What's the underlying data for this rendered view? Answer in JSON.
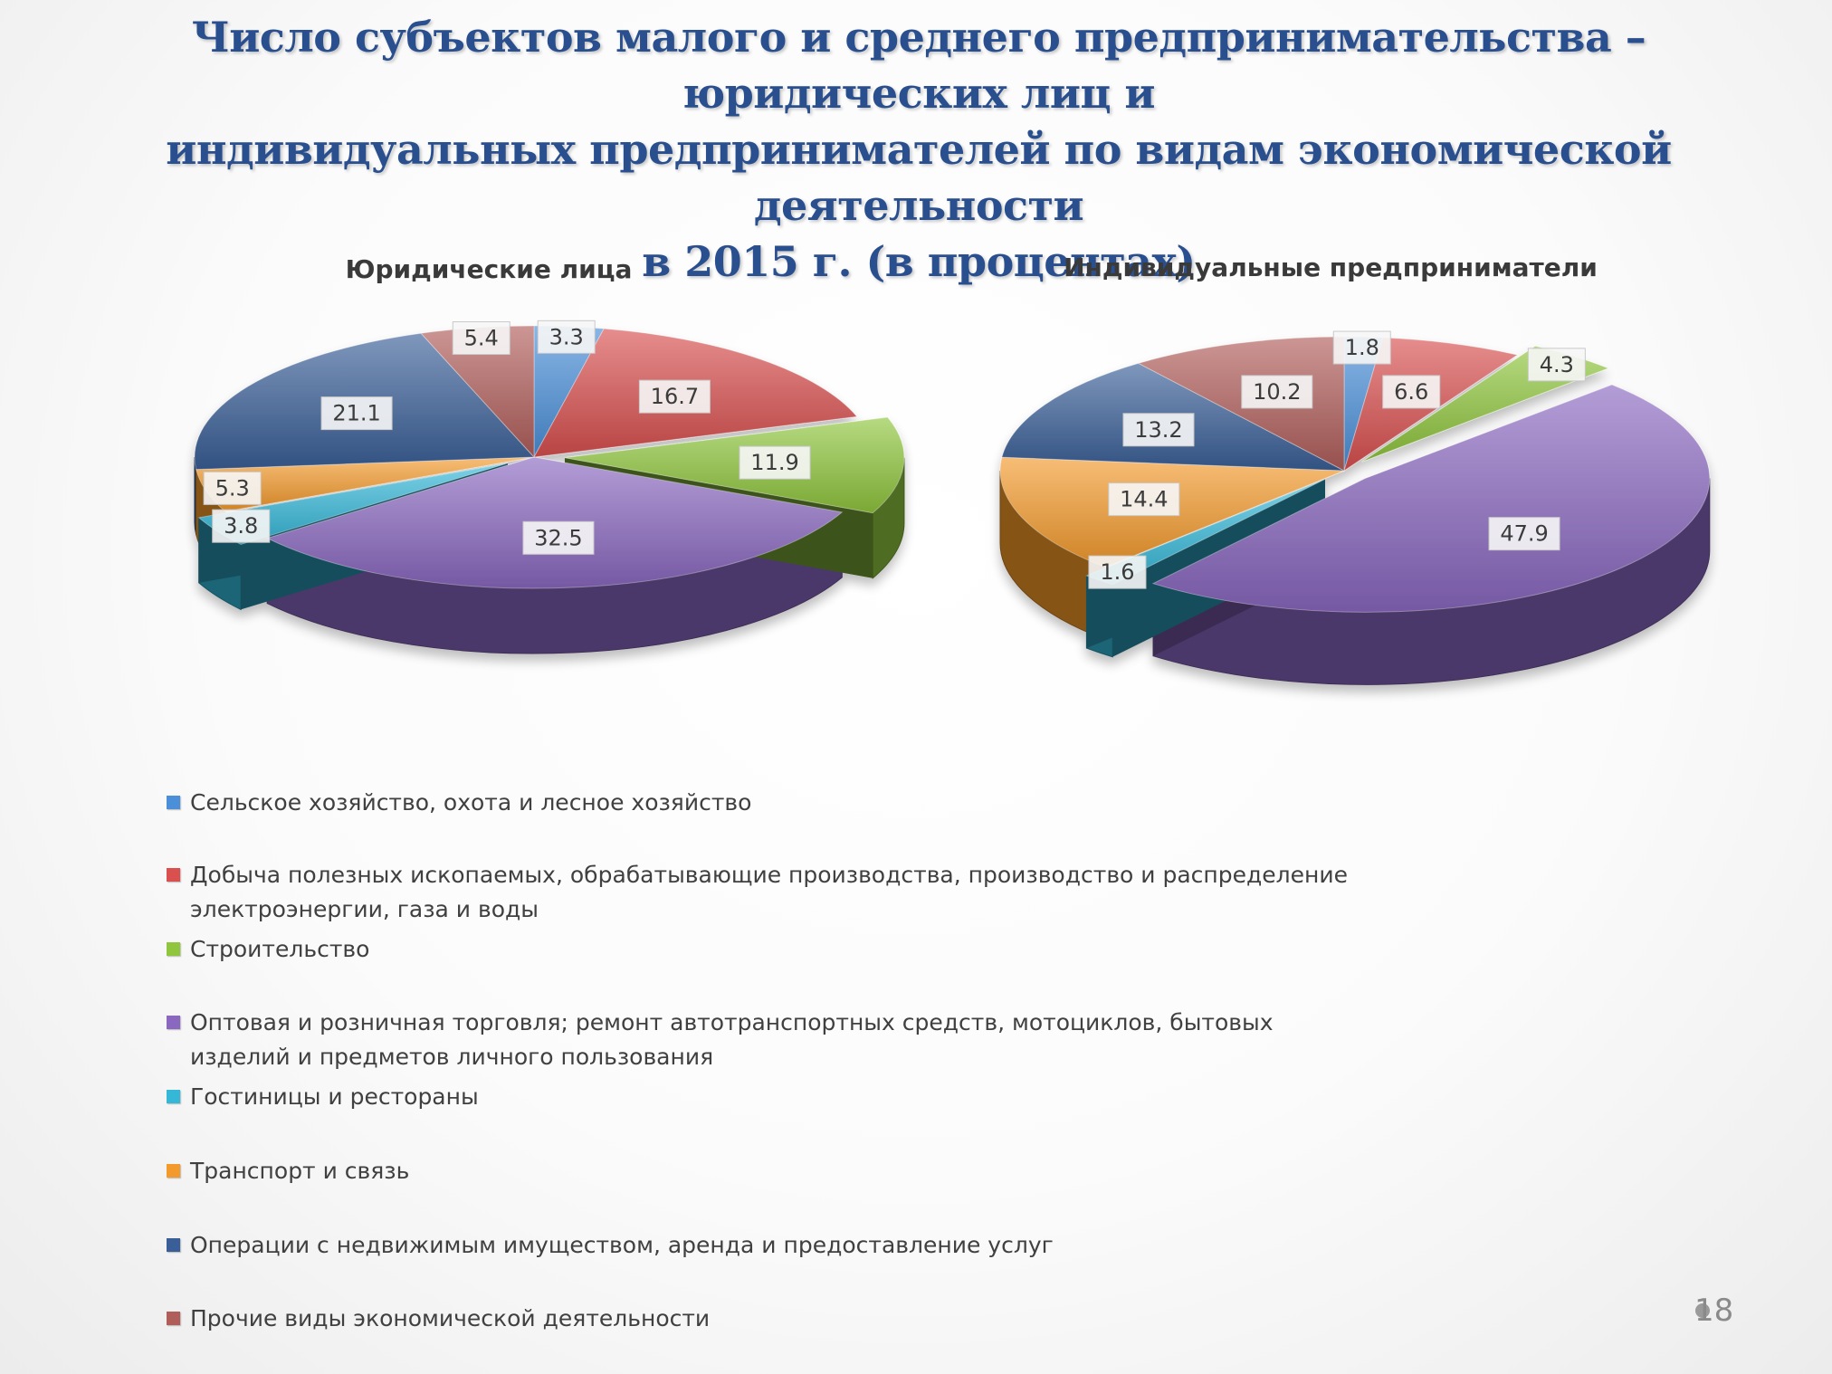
{
  "slide": {
    "title_lines": [
      "Число субъектов малого и среднего предпринимательства – юридических лиц и",
      "индивидуальных предпринимателей по видам экономической деятельности",
      "в 2015 г. (в процентах)"
    ],
    "page_number": "18"
  },
  "legend": [
    {
      "lines": [
        "Сельское хозяйство, охота и лесное хозяйство"
      ],
      "color": "#4a8fd8"
    },
    {
      "lines": [
        "Добыча полезных ископаемых, обрабатывающие производства, производство и распределение",
        "электроэнергии, газа и воды"
      ],
      "color": "#d9504f"
    },
    {
      "lines": [
        "Строительство"
      ],
      "color": "#8fc63d"
    },
    {
      "lines": [
        "Оптовая и розничная торговля; ремонт автотранспортных средств, мотоциклов, бытовых",
        "изделий и предметов личного пользования"
      ],
      "color": "#8a68c0"
    },
    {
      "lines": [
        "Гостиницы и рестораны"
      ],
      "color": "#35b8d8"
    },
    {
      "lines": [
        "Транспорт и связь"
      ],
      "color": "#f39a2c"
    },
    {
      "lines": [
        "Операции с недвижимым имуществом, аренда и предоставление услуг"
      ],
      "color": "#3a5f98"
    },
    {
      "lines": [
        "Прочие виды экономической деятельности"
      ],
      "color": "#b05e5a"
    }
  ],
  "chart_data": [
    {
      "type": "pie",
      "title": "Юридические лица",
      "categories": [
        "Сельское хозяйство, охота и лесное хозяйство",
        "Добыча полезных ископаемых, обрабатывающие производства, производство и распределение электроэнергии, газа и воды",
        "Строительство",
        "Оптовая и розничная торговля; ремонт автотранспортных средств, мотоциклов, бытовых изделий и предметов личного пользования",
        "Гостиницы и рестораны",
        "Транспорт и связь",
        "Операции с недвижимым имуществом, аренда и предоставление услуг",
        "Прочие виды экономической деятельности"
      ],
      "values": [
        3.3,
        16.7,
        11.9,
        32.5,
        3.8,
        5.3,
        21.1,
        5.4
      ],
      "labels": [
        "3.3",
        "16.7",
        "11.9",
        "32.5",
        "3.8",
        "5.3",
        "21.1",
        "5.4"
      ],
      "exploded": [
        "Строительство",
        "Гостиницы и рестораны"
      ],
      "style": "3d"
    },
    {
      "type": "pie",
      "title": "Индивидуальные предприниматели",
      "categories": [
        "Сельское хозяйство, охота и лесное хозяйство",
        "Добыча полезных ископаемых, обрабатывающие производства, производство и распределение электроэнергии, газа и воды",
        "Строительство",
        "Оптовая и розничная торговля; ремонт автотранспортных средств, мотоциклов, бытовых изделий и предметов личного пользования",
        "Гостиницы и рестораны",
        "Транспорт и связь",
        "Операции с недвижимым имуществом, аренда и предоставление услуг",
        "Прочие виды экономической деятельности"
      ],
      "values": [
        1.8,
        6.6,
        4.3,
        47.9,
        1.6,
        14.4,
        13.2,
        10.2
      ],
      "labels": [
        "1.8",
        "6.6",
        "4.3",
        "47.9",
        "1.6",
        "14.4",
        "13.2",
        "10.2"
      ],
      "exploded": [
        "Строительство",
        "Оптовая и розничная торговля; ремонт автотранспортных средств, мотоциклов, бытовых изделий и предметов личного пользования",
        "Гостиницы и рестораны"
      ],
      "style": "3d"
    }
  ]
}
